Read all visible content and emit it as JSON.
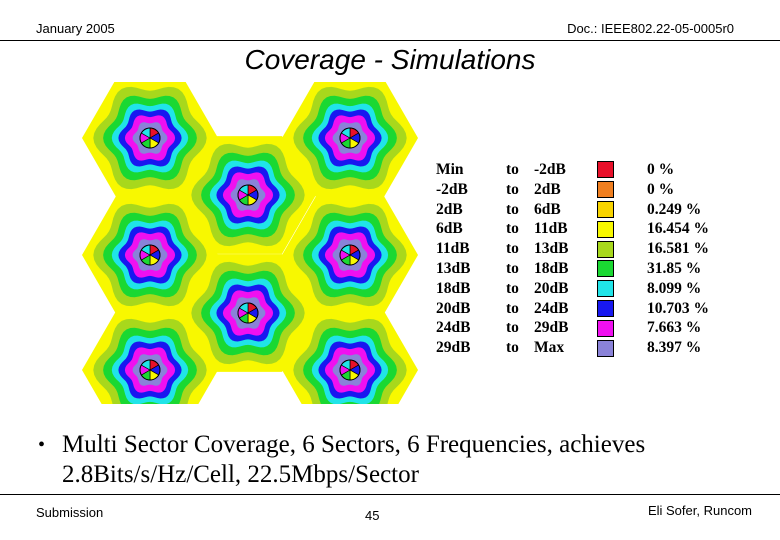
{
  "header": {
    "date": "January 2005",
    "doc_id": "Doc.: IEEE802.22-05-0005r0"
  },
  "slide": {
    "title": "Coverage - Simulations"
  },
  "legend": {
    "rows": [
      {
        "min": "Min",
        "to": "to",
        "max": "-2dB",
        "color": "#e8102a",
        "percent": "0 %"
      },
      {
        "min": "-2dB",
        "to": "to",
        "max": "2dB",
        "color": "#f07f20",
        "percent": "0 %"
      },
      {
        "min": "2dB",
        "to": "to",
        "max": "6dB",
        "color": "#f8d400",
        "percent": "0.249  %"
      },
      {
        "min": "6dB",
        "to": "to",
        "max": "11dB",
        "color": "#f8f800",
        "percent": "16.454  %"
      },
      {
        "min": "11dB",
        "to": "to",
        "max": "13dB",
        "color": "#a8d81c",
        "percent": "16.581  %"
      },
      {
        "min": "13dB",
        "to": "to",
        "max": "18dB",
        "color": "#1ad832",
        "percent": "31.85  %"
      },
      {
        "min": "18dB",
        "to": "to",
        "max": "20dB",
        "color": "#20e4e8",
        "percent": "8.099  %"
      },
      {
        "min": "20dB",
        "to": "to",
        "max": "24dB",
        "color": "#1818f0",
        "percent": "10.703  %"
      },
      {
        "min": "24dB",
        "to": "to",
        "max": "29dB",
        "color": "#f010f0",
        "percent": "7.663  %"
      },
      {
        "min": "29dB",
        "to": "to",
        "max": "Max",
        "color": "#8a82d8",
        "percent": "8.397  %"
      }
    ]
  },
  "bullet": {
    "text": "Multi Sector Coverage, 6 Sectors, 6 Frequencies, achieves 2.8Bits/s/Hz/Cell, 22.5Mbps/Sector"
  },
  "footer": {
    "left": "Submission",
    "page_number": "45",
    "author": "Eli Sofer, Runcom"
  },
  "map": {
    "background_color": "#f8f800",
    "ring_colors": [
      "#a8d81c",
      "#1ad832",
      "#20e4e8",
      "#1818f0",
      "#f010f0",
      "#8a82d8"
    ],
    "sector_colors": [
      "#e8102a",
      "#1818f0",
      "#f8f800",
      "#1ad832",
      "#f010f0",
      "#20e4e8"
    ]
  }
}
